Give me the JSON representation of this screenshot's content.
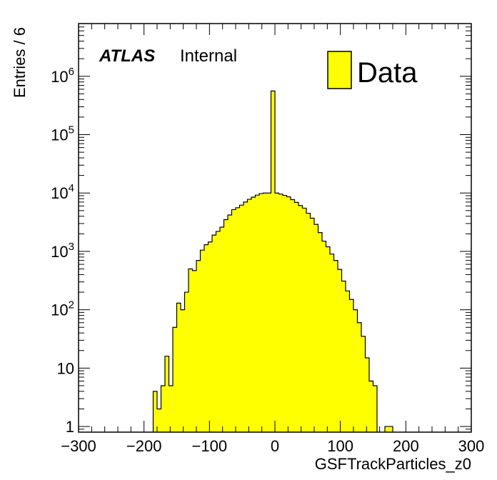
{
  "chart_data": {
    "type": "bar",
    "xlabel": "GSFTrackParticles_z0",
    "ylabel": "Entries / 6",
    "xlim": [
      -300,
      300
    ],
    "ylim": [
      0.8,
      8000000
    ],
    "yscale": "log",
    "bin_width": 6,
    "x_ticks": [
      -300,
      -200,
      -100,
      0,
      100,
      200,
      300
    ],
    "x_tick_labels": [
      "−300",
      "−200",
      "−100",
      "0",
      "100",
      "200",
      "300"
    ],
    "y_ticks": [
      1,
      10,
      100,
      1000,
      10000,
      100000,
      1000000
    ],
    "y_tick_labels": [
      {
        "base": "1",
        "exp": ""
      },
      {
        "base": "10",
        "exp": ""
      },
      {
        "base": "10",
        "exp": "2"
      },
      {
        "base": "10",
        "exp": "3"
      },
      {
        "base": "10",
        "exp": "4"
      },
      {
        "base": "10",
        "exp": "5"
      },
      {
        "base": "10",
        "exp": "6"
      }
    ],
    "grid": false,
    "legend": {
      "position": "top-right",
      "entries": [
        {
          "label": "Data",
          "color": "#ffff00"
        }
      ]
    },
    "annotation": {
      "atlas": "ATLAS",
      "internal": "Internal"
    },
    "series": [
      {
        "name": "Data",
        "color": "#ffff00",
        "bin_low_edges": [
          -186,
          -180,
          -174,
          -168,
          -162,
          -156,
          -150,
          -144,
          -138,
          -132,
          -126,
          -120,
          -114,
          -108,
          -102,
          -96,
          -90,
          -84,
          -78,
          -72,
          -66,
          -60,
          -54,
          -48,
          -42,
          -36,
          -30,
          -24,
          -18,
          -12,
          -6,
          0,
          6,
          12,
          18,
          24,
          30,
          36,
          42,
          48,
          54,
          60,
          66,
          72,
          78,
          84,
          90,
          96,
          102,
          108,
          114,
          120,
          126,
          132,
          138,
          144,
          150,
          156,
          162,
          168,
          174
        ],
        "values": [
          4,
          2,
          5,
          16,
          5,
          50,
          130,
          100,
          200,
          500,
          470,
          700,
          1050,
          1300,
          1450,
          1900,
          2200,
          2600,
          3500,
          4200,
          5200,
          5600,
          6200,
          7000,
          7800,
          8500,
          9200,
          9800,
          10000,
          10000,
          560000,
          10000,
          9600,
          9100,
          8600,
          7700,
          6900,
          6100,
          5500,
          4500,
          3700,
          2900,
          2100,
          1500,
          1200,
          900,
          700,
          490,
          310,
          210,
          150,
          100,
          60,
          35,
          15,
          6,
          5,
          0,
          0,
          1,
          1
        ]
      }
    ]
  }
}
